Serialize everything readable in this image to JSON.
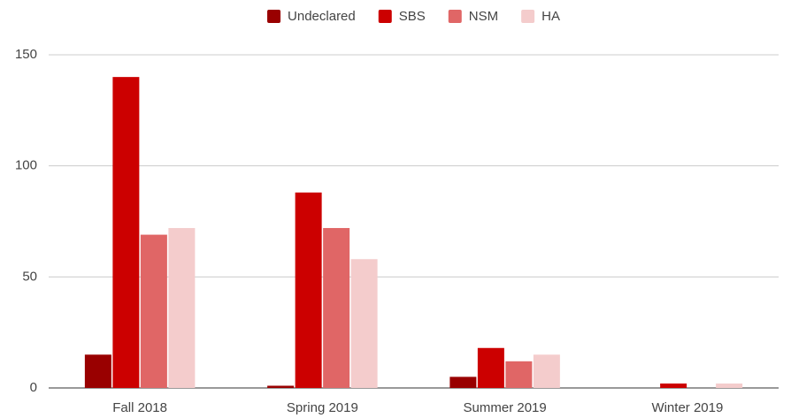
{
  "chart_data": {
    "type": "bar",
    "categories": [
      "Fall 2018",
      "Spring 2019",
      "Summer 2019",
      "Winter 2019"
    ],
    "series": [
      {
        "name": "Undeclared",
        "color": "#990000",
        "values": [
          15,
          1,
          5,
          0
        ]
      },
      {
        "name": "SBS",
        "color": "#cc0000",
        "values": [
          140,
          88,
          18,
          2
        ]
      },
      {
        "name": "NSM",
        "color": "#e06666",
        "values": [
          69,
          72,
          12,
          0
        ]
      },
      {
        "name": "HA",
        "color": "#f4cccc",
        "values": [
          72,
          58,
          15,
          2
        ]
      }
    ],
    "ylim": [
      0,
      150
    ],
    "yticks": [
      0,
      50,
      100,
      150
    ],
    "grid": true,
    "legend": "top"
  }
}
